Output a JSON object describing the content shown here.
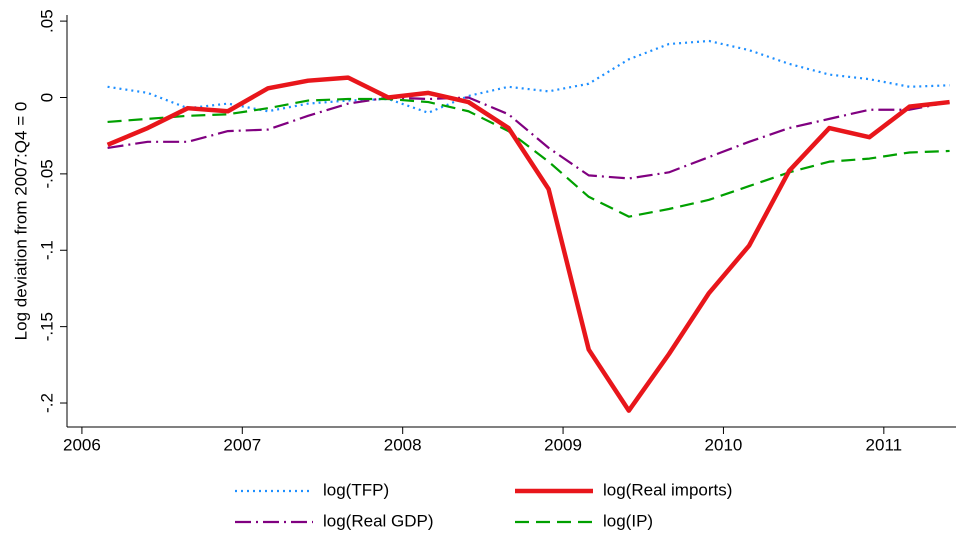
{
  "chart_data": {
    "type": "line",
    "y_label": "Log deviation from 2007:Q4 = 0",
    "x": [
      2006.16,
      2006.41,
      2006.66,
      2006.91,
      2007.16,
      2007.41,
      2007.66,
      2007.91,
      2008.16,
      2008.41,
      2008.66,
      2008.91,
      2009.16,
      2009.41,
      2009.66,
      2009.91,
      2010.16,
      2010.41,
      2010.66,
      2010.91,
      2011.16,
      2011.41
    ],
    "series": [
      {
        "name": "log(TFP)",
        "color": "#1e8fff",
        "style": "dotted",
        "values": [
          0.007,
          0.003,
          -0.007,
          -0.004,
          -0.009,
          -0.004,
          -0.002,
          -0.001,
          -0.01,
          0.001,
          0.007,
          0.004,
          0.009,
          0.025,
          0.035,
          0.037,
          0.031,
          0.022,
          0.015,
          0.012,
          0.007,
          0.008
        ]
      },
      {
        "name": "log(Real imports)",
        "color": "#e8161b",
        "style": "solid",
        "values": [
          -0.031,
          -0.02,
          -0.007,
          -0.009,
          0.006,
          0.011,
          0.013,
          0.0,
          0.003,
          -0.003,
          -0.02,
          -0.06,
          -0.165,
          -0.205,
          -0.168,
          -0.128,
          -0.097,
          -0.048,
          -0.02,
          -0.026,
          -0.006,
          -0.003
        ]
      },
      {
        "name": "log(Real GDP)",
        "color": "#800080",
        "style": "dashdot",
        "values": [
          -0.033,
          -0.029,
          -0.029,
          -0.022,
          -0.021,
          -0.012,
          -0.004,
          0.0,
          -0.001,
          0.0,
          -0.011,
          -0.033,
          -0.051,
          -0.053,
          -0.049,
          -0.039,
          -0.029,
          -0.02,
          -0.014,
          -0.008,
          -0.008,
          -0.003
        ]
      },
      {
        "name": "log(IP)",
        "color": "#00a000",
        "style": "dashed",
        "values": [
          -0.016,
          -0.014,
          -0.012,
          -0.011,
          -0.007,
          -0.002,
          -0.001,
          -0.001,
          -0.003,
          -0.009,
          -0.022,
          -0.042,
          -0.065,
          -0.078,
          -0.073,
          -0.067,
          -0.058,
          -0.049,
          -0.042,
          -0.04,
          -0.036,
          -0.035
        ]
      }
    ],
    "xlim": [
      2005.907,
      2011.45
    ],
    "xticks": [
      2006,
      2007,
      2008,
      2009,
      2010,
      2011
    ],
    "ylim": [
      -0.2157,
      0.054
    ],
    "yticks": [
      {
        "value": 0.05,
        "label": ".05"
      },
      0,
      {
        "value": -0.05,
        "label": "-.05"
      },
      {
        "value": -0.1,
        "label": "-.1"
      },
      {
        "value": -0.15,
        "label": "-.15"
      },
      {
        "value": -0.2,
        "label": "-.2"
      }
    ],
    "grid": false
  }
}
